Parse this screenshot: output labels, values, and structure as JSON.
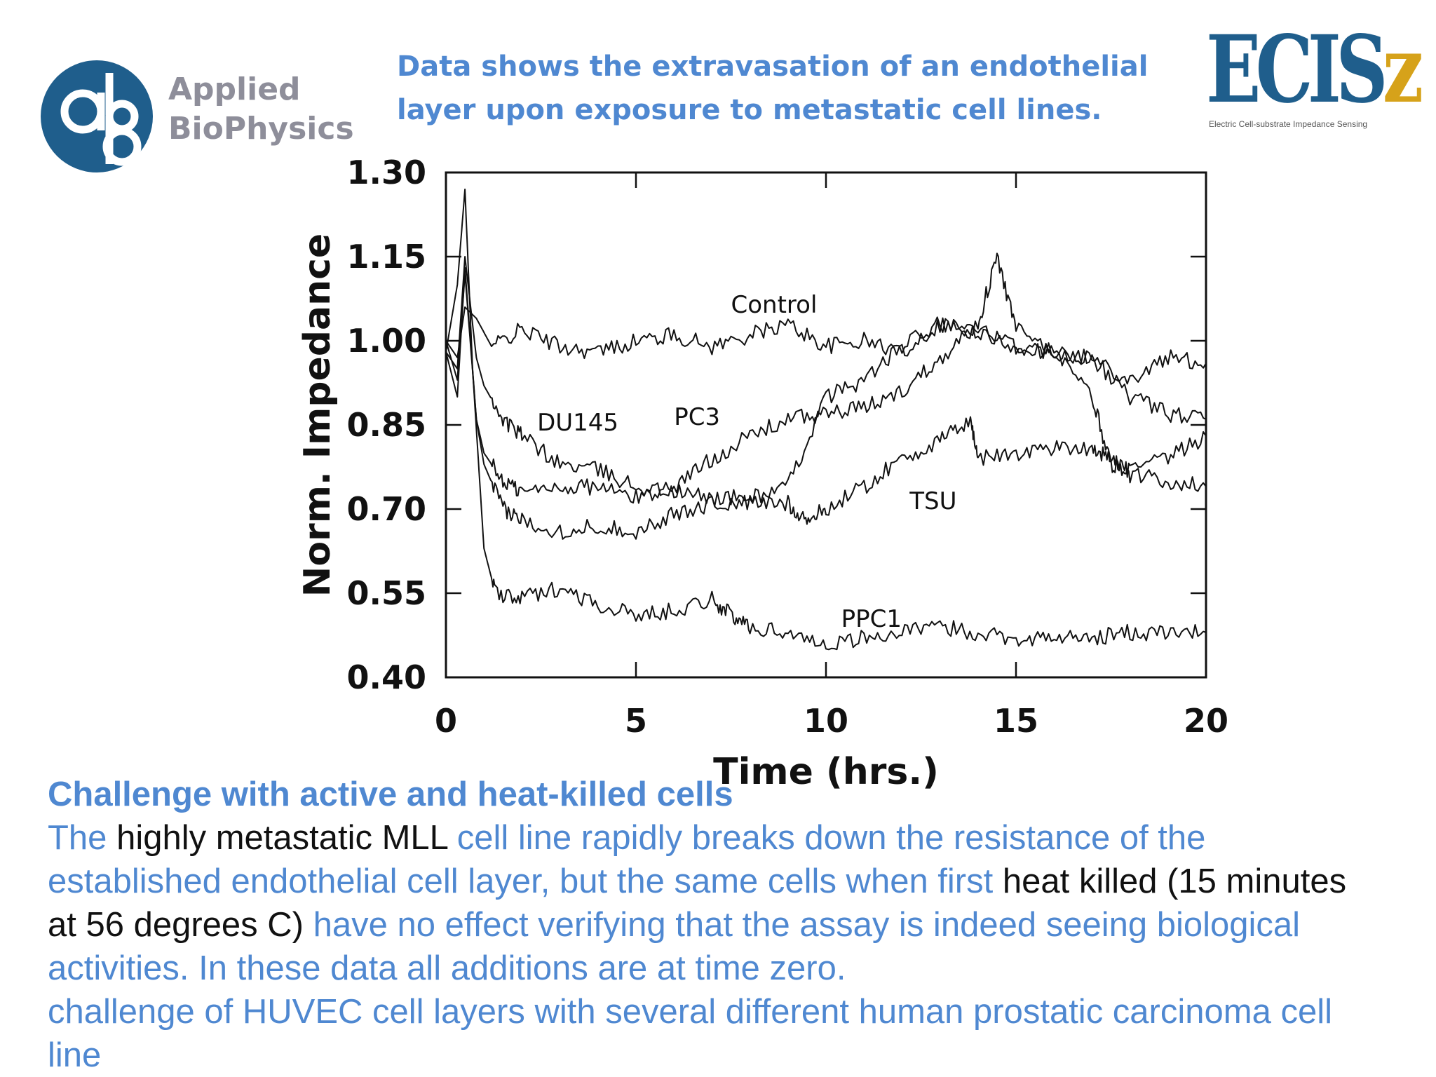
{
  "header": {
    "logo_line1": "Applied",
    "logo_line2": "BioPhysics",
    "headline_line1": "Data shows the extravasation of an endothelial",
    "headline_line2": "layer upon exposure to metastatic cell lines.",
    "ecisz_logo_text": "ECIS",
    "ecisz_logo_z": "z",
    "ecisz_subtitle": "Electric Cell-substrate Impedance Sensing"
  },
  "colors": {
    "accent_blue": "#4f88d1",
    "dark_text": "#111111",
    "logo_blue": "#1f5e8c",
    "logo_gray": "#8e8e9a",
    "logo_gold": "#d6a21a"
  },
  "chart_data": {
    "type": "line",
    "title": "",
    "xlabel": "Time (hrs.)",
    "ylabel": "Norm. Impedance",
    "xlim": [
      0,
      20
    ],
    "ylim": [
      0.4,
      1.3
    ],
    "xticks": [
      0,
      5,
      10,
      15,
      20
    ],
    "xtick_labels": [
      "0",
      "5",
      "10",
      "15",
      "20"
    ],
    "yticks": [
      0.4,
      0.55,
      0.7,
      0.85,
      1.0,
      1.15,
      1.3
    ],
    "ytick_labels": [
      "0.40",
      "0.55",
      "0.70",
      "0.85",
      "1.00",
      "1.15",
      "1.30"
    ],
    "series": [
      {
        "name": "Control",
        "label": "Control",
        "label_at": [
          7.5,
          1.05
        ],
        "x": [
          0,
          0.3,
          0.5,
          0.8,
          1.2,
          2,
          3,
          4,
          5,
          6,
          7,
          8,
          9,
          10,
          11,
          12,
          13,
          14,
          15,
          16,
          17,
          18,
          19,
          20
        ],
        "y": [
          1.0,
          0.97,
          1.06,
          1.04,
          0.99,
          1.02,
          0.99,
          0.98,
          1.0,
          1.01,
          0.99,
          1.01,
          1.03,
          0.99,
          1.0,
          0.98,
          1.03,
          1.02,
          0.99,
          0.98,
          0.97,
          0.93,
          0.97,
          0.96
        ]
      },
      {
        "name": "DU145",
        "label": "DU145",
        "label_at": [
          2.4,
          0.84
        ],
        "x": [
          0,
          0.3,
          0.5,
          0.8,
          1,
          1.5,
          2,
          3,
          4,
          5,
          6,
          7,
          8,
          9,
          10,
          11,
          12,
          13,
          14,
          15,
          16,
          17,
          17.5,
          18,
          19,
          20
        ],
        "y": [
          0.98,
          0.95,
          1.15,
          0.97,
          0.92,
          0.86,
          0.83,
          0.78,
          0.77,
          0.74,
          0.73,
          0.72,
          0.72,
          0.74,
          0.9,
          0.93,
          0.99,
          1.03,
          1.01,
          0.99,
          0.98,
          0.9,
          0.78,
          0.77,
          0.79,
          0.83
        ]
      },
      {
        "name": "PC3",
        "label": "PC3",
        "label_at": [
          6.0,
          0.85
        ],
        "x": [
          0,
          0.3,
          0.5,
          0.8,
          1,
          1.5,
          2,
          3,
          4,
          5,
          6,
          7,
          8,
          9,
          10,
          11,
          12,
          13,
          14,
          14.5,
          15,
          16,
          17,
          18,
          19,
          20
        ],
        "y": [
          1.0,
          0.93,
          1.12,
          0.86,
          0.8,
          0.75,
          0.73,
          0.74,
          0.74,
          0.72,
          0.74,
          0.79,
          0.83,
          0.86,
          0.87,
          0.88,
          0.91,
          0.97,
          1.03,
          1.15,
          1.02,
          0.98,
          0.97,
          0.9,
          0.87,
          0.86
        ]
      },
      {
        "name": "TSU",
        "label": "TSU",
        "label_at": [
          12.2,
          0.7
        ],
        "x": [
          0,
          0.3,
          0.5,
          0.8,
          1,
          1.5,
          2,
          3,
          4,
          5,
          6,
          7,
          8,
          9,
          9.5,
          10,
          11,
          12,
          13,
          13.8,
          14,
          15,
          16,
          17,
          17.5,
          18,
          19,
          20
        ],
        "y": [
          0.98,
          0.9,
          1.13,
          0.86,
          0.78,
          0.7,
          0.68,
          0.66,
          0.67,
          0.66,
          0.69,
          0.71,
          0.71,
          0.71,
          0.68,
          0.7,
          0.74,
          0.79,
          0.82,
          0.86,
          0.79,
          0.8,
          0.81,
          0.81,
          0.79,
          0.76,
          0.75,
          0.74
        ]
      },
      {
        "name": "PPC1",
        "label": "PPC1",
        "label_at": [
          10.4,
          0.49
        ],
        "x": [
          0,
          0.3,
          0.5,
          0.7,
          1,
          1.3,
          2,
          3,
          4,
          5,
          6,
          7,
          7.5,
          8,
          9,
          10,
          11,
          12,
          13,
          14,
          15,
          16,
          17,
          18,
          19,
          20
        ],
        "y": [
          0.98,
          1.1,
          1.27,
          0.95,
          0.63,
          0.55,
          0.54,
          0.56,
          0.53,
          0.51,
          0.52,
          0.54,
          0.51,
          0.49,
          0.48,
          0.46,
          0.47,
          0.48,
          0.49,
          0.48,
          0.47,
          0.47,
          0.47,
          0.48,
          0.48,
          0.48
        ]
      }
    ]
  },
  "body": {
    "heading": "Challenge with active and heat-killed cells",
    "p1": "The ",
    "p2": "highly metastatic MLL",
    "p3": " cell line rapidly breaks down the resistance of the established endothelial cell layer, but the same cells when first ",
    "p4": "heat killed (15 minutes at 56 degrees C)",
    "p5": " have no effect verifying that the assay is indeed seeing biological activities. In these data all additions are at time zero.",
    "p6": "challenge of HUVEC cell layers with several different human prostatic carcinoma cell line"
  }
}
